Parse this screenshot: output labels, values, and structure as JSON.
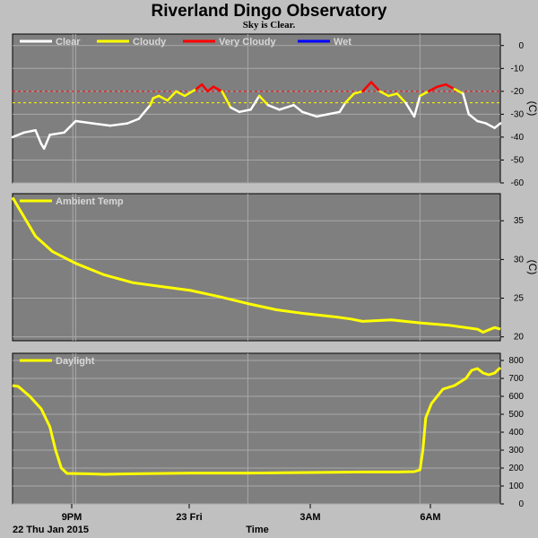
{
  "title": "Riverland Dingo Observatory",
  "subtitle": "Sky is Clear.",
  "date_label": "22 Thu Jan 2015",
  "x_axis_label": "Time",
  "x_ticks": [
    "9PM",
    "23 Fri",
    "3AM",
    "6AM"
  ],
  "colors": {
    "background": "#c0c0c0",
    "plot_bg": "#7f7f7f",
    "grid": "#a8a8a8",
    "clear": "#ffffff",
    "cloudy": "#ffff00",
    "very_cloudy": "#ff0000",
    "wet": "#0000ff",
    "threshold_cloudy": "#ffff00",
    "threshold_very_cloudy": "#ff0000"
  },
  "chart_data": [
    {
      "type": "line",
      "name": "sky-temperature",
      "unit_label": "(C)",
      "legend": [
        "Clear",
        "Cloudy",
        "Very Cloudy",
        "Wet"
      ],
      "ylim": [
        -60,
        5
      ],
      "yticks": [
        0,
        -10,
        -20,
        -30,
        -40,
        -50,
        -60
      ],
      "xlim_hours": [
        19.9,
        28.4
      ],
      "thresholds": {
        "very_cloudy": -20,
        "cloudy": -25
      },
      "series": [
        {
          "values": [
            [
              19.9,
              -40
            ],
            [
              20.1,
              -38
            ],
            [
              20.3,
              -37
            ],
            [
              20.4,
              -43
            ],
            [
              20.45,
              -45
            ],
            [
              20.55,
              -39
            ],
            [
              20.8,
              -38
            ],
            [
              21.0,
              -33
            ],
            [
              21.3,
              -34
            ],
            [
              21.6,
              -35
            ],
            [
              21.9,
              -34
            ],
            [
              22.1,
              -32
            ],
            [
              22.3,
              -26
            ],
            [
              22.35,
              -23
            ],
            [
              22.45,
              -22
            ],
            [
              22.6,
              -24
            ],
            [
              22.75,
              -20
            ],
            [
              22.9,
              -22
            ],
            [
              23.1,
              -19
            ],
            [
              23.2,
              -17
            ],
            [
              23.3,
              -20
            ],
            [
              23.4,
              -18
            ],
            [
              23.55,
              -20
            ],
            [
              23.7,
              -27
            ],
            [
              23.85,
              -29
            ],
            [
              24.05,
              -28
            ],
            [
              24.2,
              -22
            ],
            [
              24.35,
              -26
            ],
            [
              24.55,
              -28
            ],
            [
              24.8,
              -26
            ],
            [
              24.95,
              -29
            ],
            [
              25.2,
              -31
            ],
            [
              25.4,
              -30
            ],
            [
              25.6,
              -29
            ],
            [
              25.7,
              -25
            ],
            [
              25.85,
              -21
            ],
            [
              26.0,
              -20
            ],
            [
              26.15,
              -16
            ],
            [
              26.3,
              -20
            ],
            [
              26.45,
              -22
            ],
            [
              26.6,
              -21
            ],
            [
              26.75,
              -25
            ],
            [
              26.9,
              -31
            ],
            [
              27.0,
              -22
            ],
            [
              27.15,
              -20
            ],
            [
              27.3,
              -18
            ],
            [
              27.45,
              -17
            ],
            [
              27.6,
              -19
            ],
            [
              27.75,
              -21
            ],
            [
              27.85,
              -30
            ],
            [
              28.0,
              -33
            ],
            [
              28.15,
              -34
            ],
            [
              28.3,
              -36
            ],
            [
              28.4,
              -34
            ]
          ]
        }
      ]
    },
    {
      "type": "line",
      "name": "ambient-temperature",
      "unit_label": "(C)",
      "legend": [
        "Ambient Temp"
      ],
      "ylim": [
        19.5,
        38.5
      ],
      "yticks": [
        35,
        30,
        25,
        20
      ],
      "xlim_hours": [
        19.9,
        28.4
      ],
      "series": [
        {
          "name": "Ambient Temp",
          "values": [
            [
              19.9,
              38
            ],
            [
              20.1,
              35.5
            ],
            [
              20.3,
              33
            ],
            [
              20.6,
              31
            ],
            [
              21.0,
              29.5
            ],
            [
              21.5,
              28
            ],
            [
              22.0,
              27
            ],
            [
              22.5,
              26.5
            ],
            [
              23.0,
              26
            ],
            [
              23.5,
              25.2
            ],
            [
              24.0,
              24.3
            ],
            [
              24.5,
              23.5
            ],
            [
              25.0,
              23
            ],
            [
              25.5,
              22.6
            ],
            [
              25.8,
              22.3
            ],
            [
              26.0,
              22
            ],
            [
              26.5,
              22.2
            ],
            [
              27.0,
              21.8
            ],
            [
              27.5,
              21.5
            ],
            [
              28.0,
              21.0
            ],
            [
              28.1,
              20.6
            ],
            [
              28.2,
              20.9
            ],
            [
              28.3,
              21.2
            ],
            [
              28.4,
              21.0
            ]
          ]
        }
      ]
    },
    {
      "type": "line",
      "name": "daylight",
      "legend": [
        "Daylight"
      ],
      "ylim": [
        0,
        840
      ],
      "yticks": [
        800,
        700,
        600,
        500,
        400,
        300,
        200,
        100,
        0
      ],
      "xlim_hours": [
        19.9,
        28.4
      ],
      "series": [
        {
          "name": "Daylight",
          "values": [
            [
              19.9,
              660
            ],
            [
              20.0,
              655
            ],
            [
              20.2,
              600
            ],
            [
              20.4,
              530
            ],
            [
              20.55,
              430
            ],
            [
              20.65,
              300
            ],
            [
              20.75,
              200
            ],
            [
              20.85,
              170
            ],
            [
              21.2,
              168
            ],
            [
              21.5,
              165
            ],
            [
              22.0,
              168
            ],
            [
              23.0,
              172
            ],
            [
              24.0,
              172
            ],
            [
              25.0,
              175
            ],
            [
              26.0,
              178
            ],
            [
              26.6,
              178
            ],
            [
              26.9,
              180
            ],
            [
              27.0,
              190
            ],
            [
              27.05,
              300
            ],
            [
              27.1,
              480
            ],
            [
              27.2,
              560
            ],
            [
              27.4,
              640
            ],
            [
              27.6,
              660
            ],
            [
              27.8,
              700
            ],
            [
              27.9,
              745
            ],
            [
              28.0,
              755
            ],
            [
              28.1,
              730
            ],
            [
              28.2,
              720
            ],
            [
              28.3,
              730
            ],
            [
              28.4,
              760
            ]
          ]
        }
      ]
    }
  ]
}
